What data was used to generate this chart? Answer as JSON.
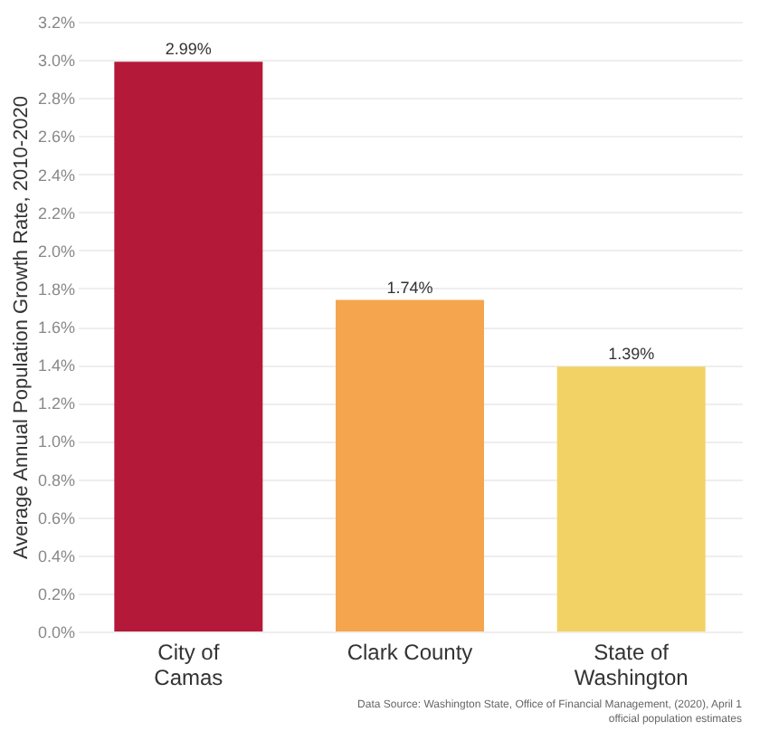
{
  "chart_data": {
    "type": "bar",
    "ylabel": "Average Annual Population Growth Rate, 2010-2020",
    "categories": [
      "City of Camas",
      "Clark County",
      "State of Washington"
    ],
    "values": [
      2.99,
      1.74,
      1.39
    ],
    "colors": [
      "#b5193a",
      "#f5a54e",
      "#f2d264"
    ],
    "value_labels": [
      "2.99%",
      "1.74%",
      "1.39%"
    ],
    "ylim": [
      0,
      3.2
    ],
    "yticks": [
      {
        "value": 0,
        "label": "0.0%"
      },
      {
        "value": 0.2,
        "label": "0.2%"
      },
      {
        "value": 0.4,
        "label": "0.4%"
      },
      {
        "value": 0.6,
        "label": "0.6%"
      },
      {
        "value": 0.8,
        "label": "0.8%"
      },
      {
        "value": 1.0,
        "label": "1.0%"
      },
      {
        "value": 1.2,
        "label": "1.2%"
      },
      {
        "value": 1.4,
        "label": "1.4%"
      },
      {
        "value": 1.6,
        "label": "1.6%"
      },
      {
        "value": 1.8,
        "label": "1.8%"
      },
      {
        "value": 2.0,
        "label": "2.0%"
      },
      {
        "value": 2.2,
        "label": "2.2%"
      },
      {
        "value": 2.4,
        "label": "2.4%"
      },
      {
        "value": 2.6,
        "label": "2.6%"
      },
      {
        "value": 2.8,
        "label": "2.8%"
      },
      {
        "value": 3.0,
        "label": "3.0%"
      },
      {
        "value": 3.2,
        "label": "3.2%"
      }
    ],
    "grid": "y",
    "annotations": [
      "Data Source: Washington State, Office of Financial Management, (2020), April 1 official population estimates"
    ]
  }
}
